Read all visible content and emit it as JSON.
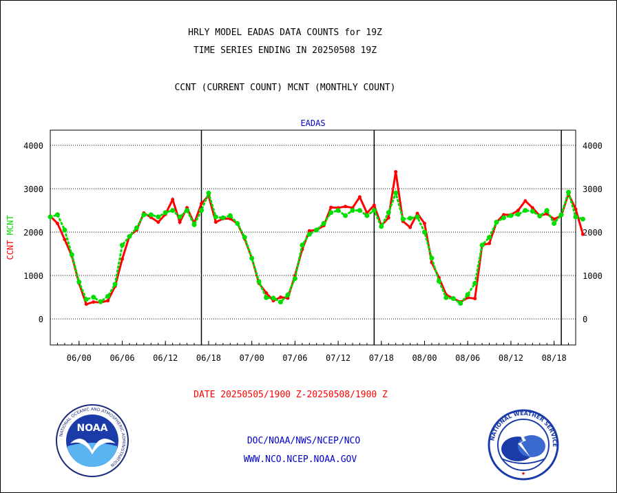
{
  "header": {
    "title_line1": "HRLY MODEL EADAS DATA COUNTS for 19Z",
    "title_line2": "TIME SERIES ENDING IN 20250508 19Z",
    "subtitle": "CCNT (CURRENT COUNT) MCNT (MONTHLY COUNT)"
  },
  "footer": {
    "date_range": "DATE 20250505/1900 Z-20250508/1900 Z",
    "org": "DOC/NOAA/NWS/NCEP/NCO",
    "url": "WWW.NCO.NCEP.NOAA.GOV"
  },
  "logos": {
    "noaa_text": "NOAA",
    "noaa_ring": "NATIONAL OCEANIC AND ATMOSPHERIC ADMINISTRATION",
    "noaa_ring_bottom": "U.S. DEPARTMENT OF COMMERCE",
    "nws_ring": "NATIONAL WEATHER SERVICE"
  },
  "colors": {
    "ccnt": "#ff0000",
    "mcnt": "#00dd00",
    "footer_date": "#ff0000",
    "footer_links": "#0000cc",
    "plot_title": "#0000cc"
  },
  "chart_data": {
    "type": "line",
    "title": "EADAS",
    "ylabel_ccnt": "CCNT",
    "ylabel_mcnt": "MCNT",
    "ylim": [
      -600,
      4350
    ],
    "yticks": [
      0,
      1000,
      2000,
      3000,
      4000
    ],
    "ytick_labels": [
      "0",
      "1000",
      "2000",
      "3000",
      "4000"
    ],
    "xlim": [
      -2,
      71
    ],
    "xticks": [
      2,
      8,
      14,
      20,
      26,
      32,
      38,
      44,
      50,
      56,
      62,
      68,
      72
    ],
    "xtick_labels": [
      "06/00",
      "06/06",
      "06/12",
      "06/18",
      "07/00",
      "07/06",
      "07/12",
      "07/18",
      "08/00",
      "08/06",
      "08/12",
      "08/18"
    ],
    "xtick_label_positions": [
      2,
      8,
      14,
      20,
      26,
      32,
      38,
      44,
      50,
      56,
      62,
      68
    ],
    "day_boundaries": [
      19,
      43,
      69
    ],
    "grid": true,
    "x_start_hour": -2,
    "series": [
      {
        "name": "CCNT",
        "values": [
          2370,
          2200,
          1830,
          1450,
          820,
          340,
          390,
          380,
          420,
          750,
          1380,
          1910,
          2050,
          2440,
          2340,
          2230,
          2410,
          2750,
          2230,
          2560,
          2200,
          2660,
          2840,
          2230,
          2310,
          2310,
          2200,
          1850,
          1400,
          820,
          600,
          420,
          500,
          480,
          1000,
          1600,
          2030,
          2050,
          2150,
          2570,
          2560,
          2590,
          2560,
          2810,
          2440,
          2620,
          2150,
          2330,
          3390,
          2250,
          2110,
          2430,
          2200,
          1300,
          950,
          560,
          470,
          390,
          490,
          470,
          1700,
          1740,
          2230,
          2400,
          2400,
          2500,
          2720,
          2560,
          2380,
          2420,
          2300,
          2380,
          2880,
          2530,
          1950
        ]
      },
      {
        "name": "MCNT",
        "values": [
          2350,
          2400,
          2050,
          1480,
          850,
          450,
          500,
          400,
          520,
          800,
          1700,
          1900,
          2100,
          2400,
          2400,
          2350,
          2450,
          2500,
          2350,
          2500,
          2170,
          2500,
          2900,
          2350,
          2330,
          2380,
          2200,
          1880,
          1400,
          860,
          490,
          480,
          390,
          550,
          930,
          1700,
          1950,
          2050,
          2200,
          2450,
          2500,
          2380,
          2500,
          2500,
          2380,
          2500,
          2130,
          2450,
          2900,
          2300,
          2320,
          2350,
          2000,
          1400,
          870,
          490,
          470,
          360,
          560,
          820,
          1700,
          1880,
          2230,
          2330,
          2380,
          2410,
          2500,
          2480,
          2370,
          2500,
          2200,
          2400,
          2920,
          2350,
          2300
        ]
      }
    ]
  }
}
